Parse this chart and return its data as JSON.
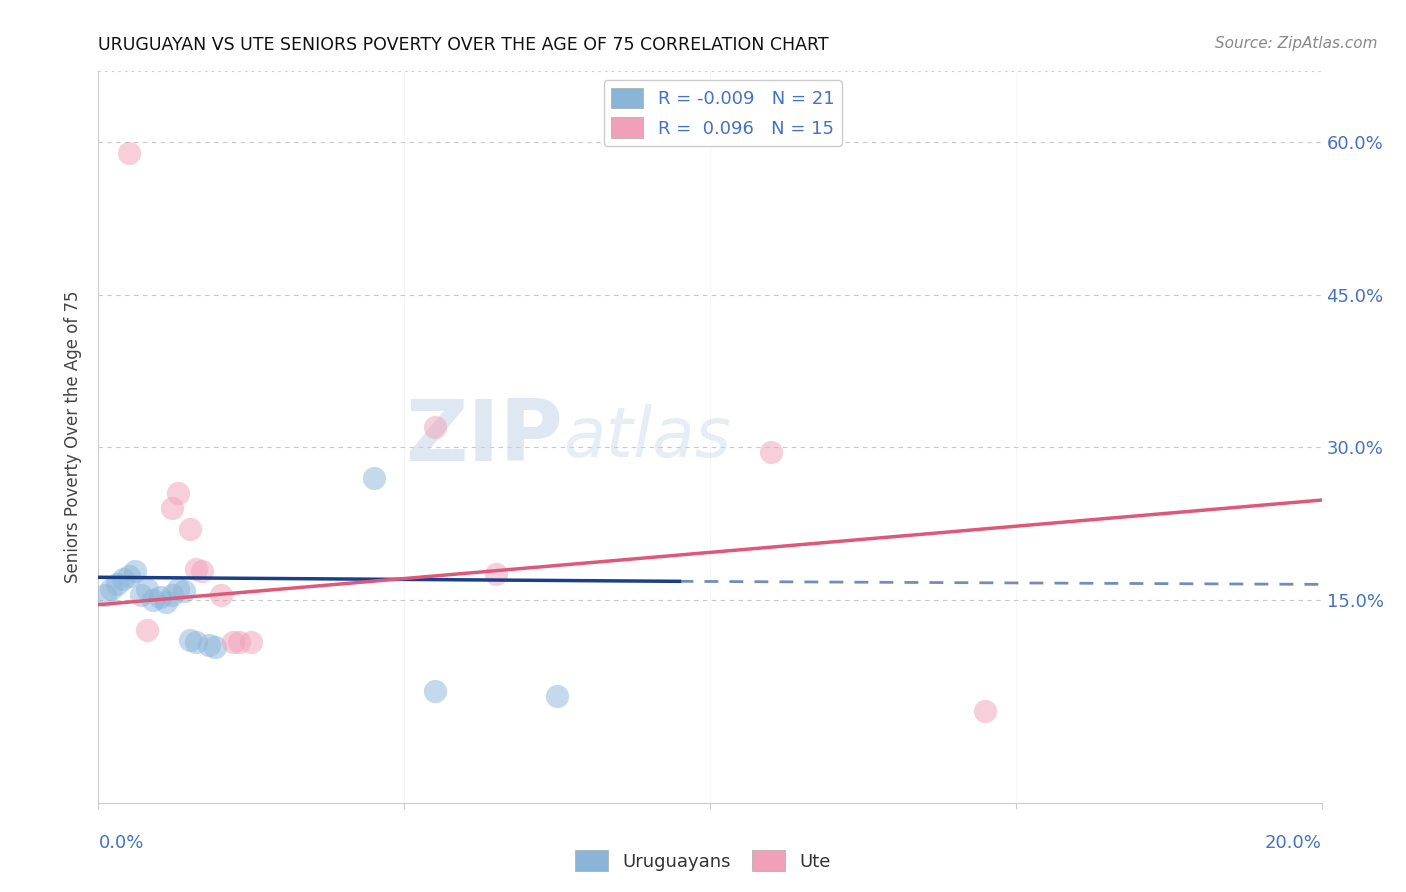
{
  "title": "URUGUAYAN VS UTE SENIORS POVERTY OVER THE AGE OF 75 CORRELATION CHART",
  "source": "Source: ZipAtlas.com",
  "ylabel": "Seniors Poverty Over the Age of 75",
  "xlim": [
    0.0,
    0.2
  ],
  "ylim": [
    -0.05,
    0.67
  ],
  "yticks": [
    0.15,
    0.3,
    0.45,
    0.6
  ],
  "ytick_labels": [
    "15.0%",
    "30.0%",
    "45.0%",
    "60.0%"
  ],
  "xtick_positions": [
    0.0,
    0.05,
    0.1,
    0.15,
    0.2
  ],
  "watermark_zip": "ZIP",
  "watermark_atlas": "atlas",
  "legend": {
    "blue_R": "R = -0.009",
    "blue_N": "N = 21",
    "pink_R": "R =  0.096",
    "pink_N": "N = 15"
  },
  "blue_scatter": [
    [
      0.001,
      0.155
    ],
    [
      0.002,
      0.16
    ],
    [
      0.003,
      0.165
    ],
    [
      0.004,
      0.17
    ],
    [
      0.005,
      0.173
    ],
    [
      0.006,
      0.178
    ],
    [
      0.007,
      0.155
    ],
    [
      0.008,
      0.16
    ],
    [
      0.009,
      0.15
    ],
    [
      0.01,
      0.153
    ],
    [
      0.011,
      0.148
    ],
    [
      0.012,
      0.155
    ],
    [
      0.013,
      0.16
    ],
    [
      0.014,
      0.158
    ],
    [
      0.015,
      0.11
    ],
    [
      0.016,
      0.108
    ],
    [
      0.018,
      0.105
    ],
    [
      0.019,
      0.103
    ],
    [
      0.045,
      0.27
    ],
    [
      0.055,
      0.06
    ],
    [
      0.075,
      0.055
    ]
  ],
  "pink_scatter": [
    [
      0.005,
      0.59
    ],
    [
      0.008,
      0.12
    ],
    [
      0.012,
      0.24
    ],
    [
      0.013,
      0.255
    ],
    [
      0.015,
      0.22
    ],
    [
      0.016,
      0.18
    ],
    [
      0.017,
      0.178
    ],
    [
      0.02,
      0.155
    ],
    [
      0.022,
      0.108
    ],
    [
      0.023,
      0.108
    ],
    [
      0.025,
      0.108
    ],
    [
      0.055,
      0.32
    ],
    [
      0.065,
      0.175
    ],
    [
      0.11,
      0.295
    ],
    [
      0.145,
      0.04
    ]
  ],
  "blue_line_solid": {
    "x0": 0.0,
    "y0": 0.172,
    "x1": 0.095,
    "y1": 0.168
  },
  "blue_line_dashed": {
    "x0": 0.095,
    "y0": 0.168,
    "x1": 0.2,
    "y1": 0.165
  },
  "pink_line": {
    "x0": 0.0,
    "y0": 0.145,
    "x1": 0.2,
    "y1": 0.248
  },
  "blue_color": "#8ab4d8",
  "pink_color": "#f0a0b8",
  "blue_line_color": "#1a3f8a",
  "pink_line_color": "#e05878",
  "background_color": "#ffffff",
  "grid_color": "#c8c8c8",
  "title_color": "#111111",
  "axis_tick_color": "#4472c4",
  "source_color": "#888888"
}
